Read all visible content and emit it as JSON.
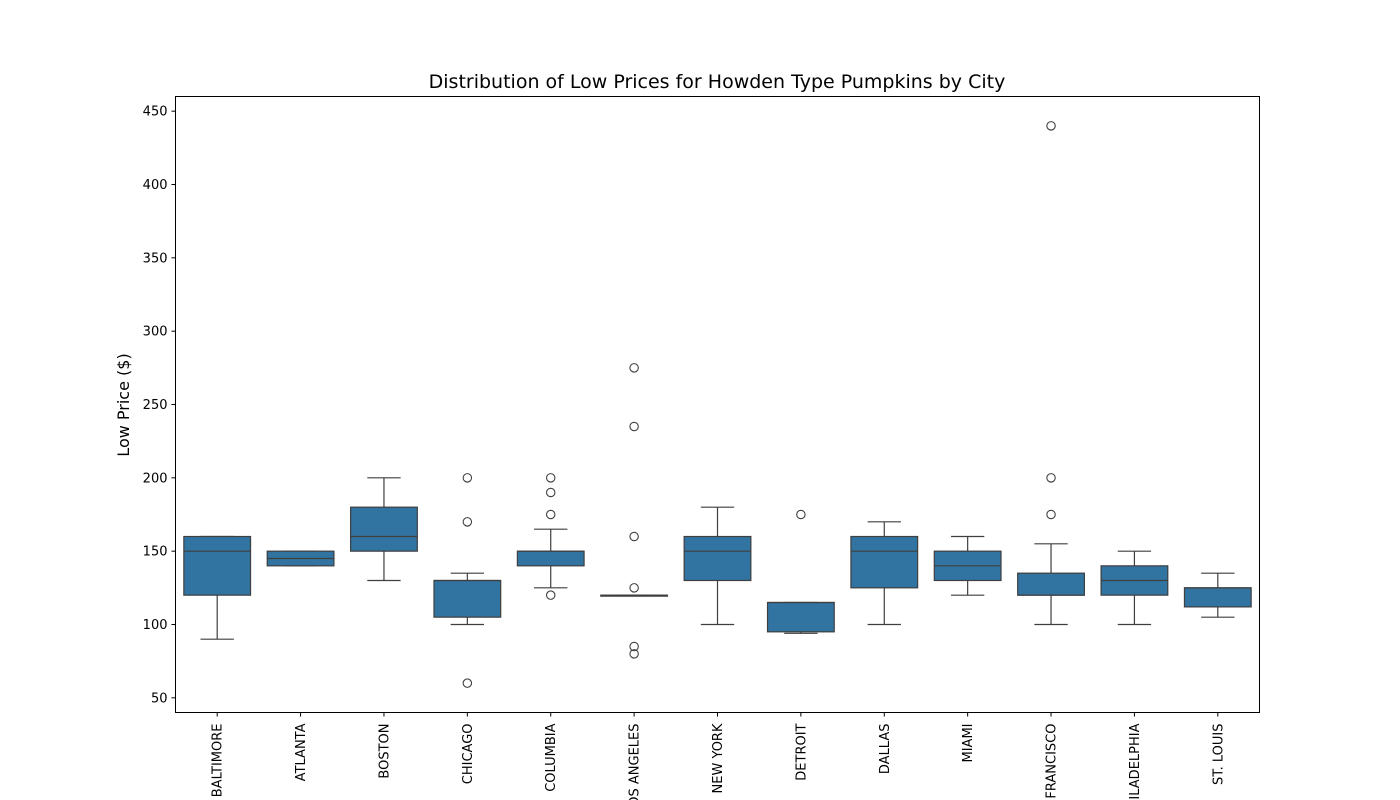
{
  "chart_data": {
    "type": "box",
    "title": "Distribution of Low Prices for Howden Type Pumpkins by City",
    "xlabel": "",
    "ylabel": "Low Price ($)",
    "ylim": [
      40,
      460
    ],
    "yticks": [
      50,
      100,
      150,
      200,
      250,
      300,
      350,
      400,
      450
    ],
    "grid": false,
    "box_color": "#3274a1",
    "line_color": "#3f3f3f",
    "categories": [
      "BALTIMORE",
      "ATLANTA",
      "BOSTON",
      "CHICAGO",
      "COLUMBIA",
      "LOS ANGELES",
      "NEW YORK",
      "DETROIT",
      "DALLAS",
      "MIAMI",
      "SAN FRANCISCO",
      "PHILADELPHIA",
      "ST. LOUIS"
    ],
    "boxes": [
      {
        "category": "BALTIMORE",
        "whisker_low": 90,
        "q1": 120,
        "median": 150,
        "q3": 160,
        "whisker_high": 160,
        "outliers": []
      },
      {
        "category": "ATLANTA",
        "whisker_low": 140,
        "q1": 140,
        "median": 145,
        "q3": 150,
        "whisker_high": 150,
        "outliers": []
      },
      {
        "category": "BOSTON",
        "whisker_low": 130,
        "q1": 150,
        "median": 160,
        "q3": 180,
        "whisker_high": 200,
        "outliers": []
      },
      {
        "category": "CHICAGO",
        "whisker_low": 100,
        "q1": 105,
        "median": 130,
        "q3": 130,
        "whisker_high": 135,
        "outliers": [
          60,
          170,
          200
        ]
      },
      {
        "category": "COLUMBIA",
        "whisker_low": 125,
        "q1": 140,
        "median": 150,
        "q3": 150,
        "whisker_high": 165,
        "outliers": [
          120,
          175,
          190,
          200
        ]
      },
      {
        "category": "LOS ANGELES",
        "whisker_low": 120,
        "q1": 120,
        "median": 120,
        "q3": 120,
        "whisker_high": 120,
        "outliers": [
          80,
          85,
          125,
          160,
          235,
          275
        ]
      },
      {
        "category": "NEW YORK",
        "whisker_low": 100,
        "q1": 130,
        "median": 150,
        "q3": 160,
        "whisker_high": 180,
        "outliers": []
      },
      {
        "category": "DETROIT",
        "whisker_low": 94,
        "q1": 95,
        "median": 115,
        "q3": 115,
        "whisker_high": 115,
        "outliers": [
          175
        ]
      },
      {
        "category": "DALLAS",
        "whisker_low": 100,
        "q1": 125,
        "median": 150,
        "q3": 160,
        "whisker_high": 170,
        "outliers": []
      },
      {
        "category": "MIAMI",
        "whisker_low": 120,
        "q1": 130,
        "median": 140,
        "q3": 150,
        "whisker_high": 160,
        "outliers": []
      },
      {
        "category": "SAN FRANCISCO",
        "whisker_low": 100,
        "q1": 120,
        "median": 120,
        "q3": 135,
        "whisker_high": 155,
        "outliers": [
          175,
          200,
          440
        ]
      },
      {
        "category": "PHILADELPHIA",
        "whisker_low": 100,
        "q1": 120,
        "median": 130,
        "q3": 140,
        "whisker_high": 150,
        "outliers": []
      },
      {
        "category": "ST. LOUIS",
        "whisker_low": 105,
        "q1": 112,
        "median": 125,
        "q3": 125,
        "whisker_high": 135,
        "outliers": []
      }
    ]
  }
}
